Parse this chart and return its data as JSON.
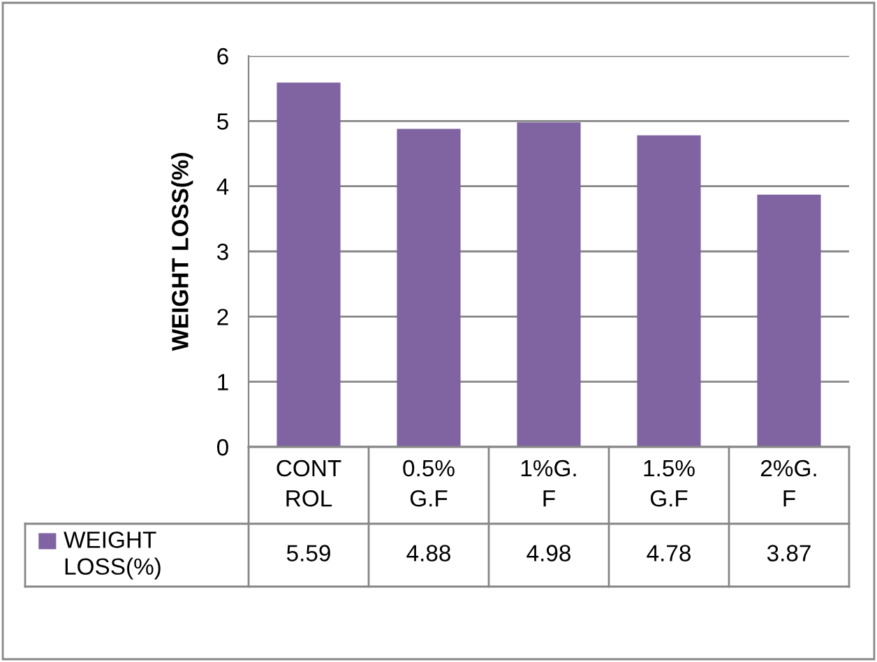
{
  "chart_data": {
    "type": "bar",
    "ylabel": "WEIGHT LOSS(%)",
    "categories": [
      "CONTROL",
      "0.5% G.F",
      "1%G.F",
      "1.5% G.F",
      "2%G.F"
    ],
    "series": [
      {
        "name": "WEIGHT LOSS(%)",
        "color": "#8064a2",
        "values": [
          5.59,
          4.88,
          4.98,
          4.78,
          3.87
        ]
      }
    ],
    "ylim": [
      0,
      6
    ],
    "yticks": [
      0,
      1,
      2,
      3,
      4,
      5,
      6
    ],
    "grid": "y",
    "data_labels": true,
    "legend": "bottom"
  }
}
